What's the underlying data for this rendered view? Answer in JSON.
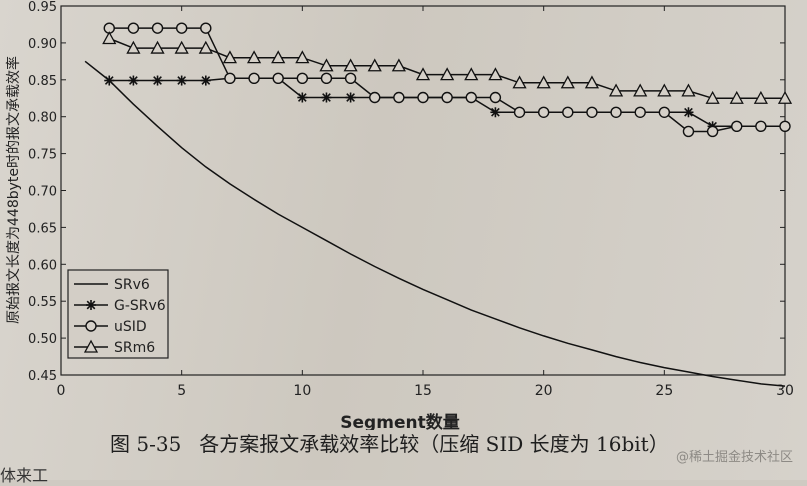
{
  "chart_data": {
    "type": "line",
    "xlabel": "Segment数量",
    "ylabel": "原始报文长度为448byte时的报文承载效率",
    "xlim": [
      0,
      30
    ],
    "ylim": [
      0.45,
      0.95
    ],
    "xticks": [
      "0",
      "5",
      "10",
      "15",
      "20",
      "25",
      "30"
    ],
    "xtick_values": [
      0,
      5,
      10,
      15,
      20,
      25,
      30
    ],
    "yticks": [
      "0.45",
      "0.50",
      "0.55",
      "0.60",
      "0.65",
      "0.70",
      "0.75",
      "0.80",
      "0.85",
      "0.90",
      "0.95"
    ],
    "ytick_values": [
      0.45,
      0.5,
      0.55,
      0.6,
      0.65,
      0.7,
      0.75,
      0.8,
      0.85,
      0.9,
      0.95
    ],
    "grid": false,
    "legend_position": "bottom-left",
    "series": [
      {
        "name": "SRv6",
        "marker": "none",
        "x": [
          1,
          2,
          3,
          4,
          5,
          6,
          7,
          8,
          9,
          10,
          11,
          12,
          13,
          14,
          15,
          16,
          17,
          18,
          19,
          20,
          21,
          22,
          23,
          24,
          25,
          26,
          27,
          28,
          29,
          30
        ],
        "values": [
          0.875,
          0.849,
          0.817,
          0.787,
          0.758,
          0.732,
          0.709,
          0.688,
          0.668,
          0.65,
          0.632,
          0.614,
          0.597,
          0.581,
          0.566,
          0.552,
          0.538,
          0.526,
          0.514,
          0.503,
          0.493,
          0.484,
          0.475,
          0.467,
          0.46,
          0.454,
          0.448,
          0.443,
          0.438,
          0.435
        ]
      },
      {
        "name": "G-SRv6",
        "marker": "star",
        "x": [
          2,
          3,
          4,
          5,
          6,
          7,
          8,
          9,
          10,
          11,
          12,
          13,
          14,
          15,
          16,
          17,
          18,
          19,
          20,
          21,
          22,
          23,
          24,
          25,
          26,
          27,
          28,
          29,
          30
        ],
        "values": [
          0.849,
          0.849,
          0.849,
          0.849,
          0.849,
          0.852,
          0.852,
          0.852,
          0.826,
          0.826,
          0.826,
          0.826,
          0.826,
          0.826,
          0.826,
          0.826,
          0.806,
          0.806,
          0.806,
          0.806,
          0.806,
          0.806,
          0.806,
          0.806,
          0.806,
          0.787,
          0.787,
          0.787,
          0.787
        ]
      },
      {
        "name": "uSID",
        "marker": "circle",
        "x": [
          2,
          3,
          4,
          5,
          6,
          7,
          8,
          9,
          10,
          11,
          12,
          13,
          14,
          15,
          16,
          17,
          18,
          19,
          20,
          21,
          22,
          23,
          24,
          25,
          26,
          27,
          28,
          29,
          30
        ],
        "values": [
          0.92,
          0.92,
          0.92,
          0.92,
          0.92,
          0.852,
          0.852,
          0.852,
          0.852,
          0.852,
          0.852,
          0.826,
          0.826,
          0.826,
          0.826,
          0.826,
          0.826,
          0.806,
          0.806,
          0.806,
          0.806,
          0.806,
          0.806,
          0.806,
          0.78,
          0.78,
          0.787,
          0.787,
          0.787
        ]
      },
      {
        "name": "SRm6",
        "marker": "triangle",
        "x": [
          2,
          3,
          4,
          5,
          6,
          7,
          8,
          9,
          10,
          11,
          12,
          13,
          14,
          15,
          16,
          17,
          18,
          19,
          20,
          21,
          22,
          23,
          24,
          25,
          26,
          27,
          28,
          29,
          30
        ],
        "values": [
          0.906,
          0.893,
          0.893,
          0.893,
          0.893,
          0.88,
          0.88,
          0.88,
          0.88,
          0.869,
          0.869,
          0.869,
          0.869,
          0.857,
          0.857,
          0.857,
          0.857,
          0.846,
          0.846,
          0.846,
          0.846,
          0.835,
          0.835,
          0.835,
          0.835,
          0.825,
          0.825,
          0.825,
          0.825
        ]
      }
    ]
  },
  "caption": {
    "number": "图 5-35",
    "text": "各方案报文承载效率比较（压缩 SID 长度为 16bit）"
  },
  "watermark": "@稀土掘金技术社区",
  "fragment": "体来工"
}
